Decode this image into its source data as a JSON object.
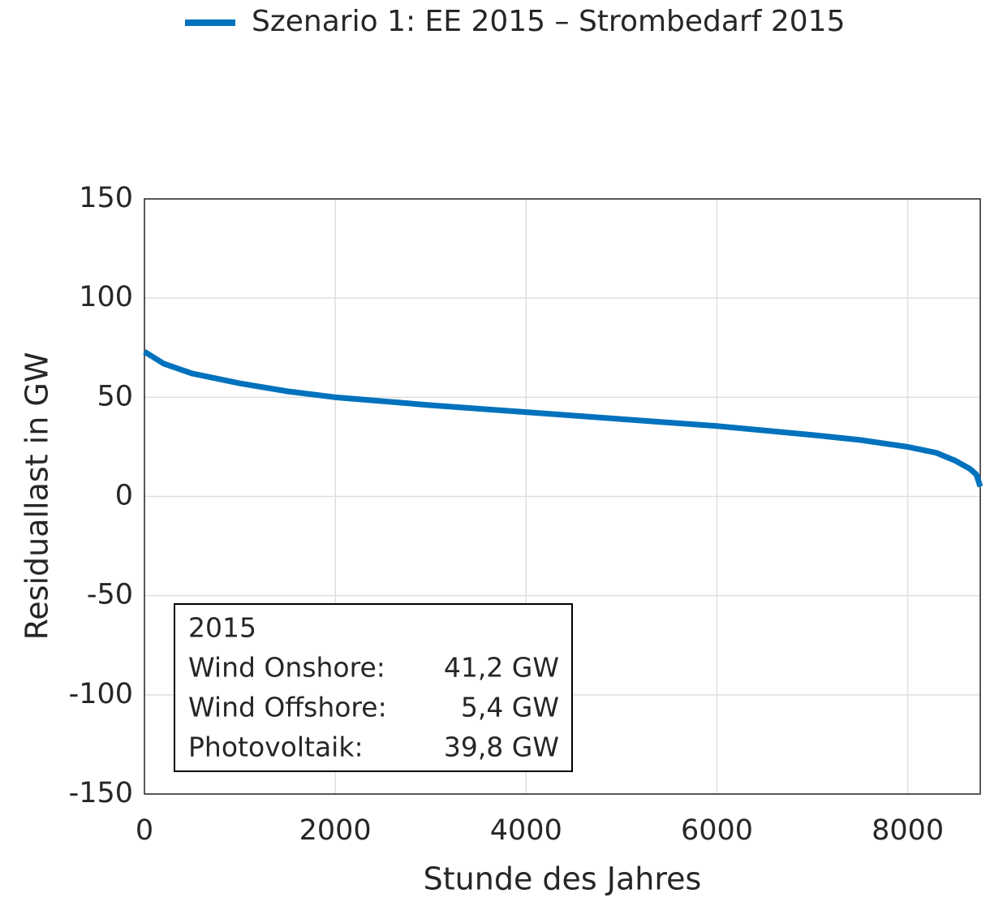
{
  "chart_data": {
    "type": "line",
    "x_label": "Stunde des Jahres",
    "y_label": "Residuallast in GW",
    "x": [
      0,
      100,
      200,
      500,
      1000,
      1500,
      2000,
      3000,
      4000,
      5000,
      6000,
      7000,
      7500,
      8000,
      8300,
      8500,
      8650,
      8720,
      8760
    ],
    "series": [
      {
        "name": "Szenario 1: EE 2015 – Strombedarf 2015",
        "color": "#0072bd",
        "values": [
          73,
          70,
          67,
          62,
          57,
          53,
          50,
          46,
          42.5,
          39,
          35.5,
          31,
          28.5,
          25,
          22,
          18,
          14,
          11,
          5
        ]
      }
    ],
    "xlim": [
      0,
      8760
    ],
    "xticks": [
      0,
      2000,
      4000,
      6000,
      8000
    ],
    "ylim": [
      -150,
      150
    ],
    "yticks": [
      -150,
      -100,
      -50,
      0,
      50,
      100,
      150
    ],
    "grid": true,
    "legend": "top",
    "annotation": {
      "title": "2015",
      "rows": [
        [
          "Wind Onshore:",
          "41,2 GW"
        ],
        [
          "Wind Offshore:",
          "5,4 GW"
        ],
        [
          "Photovoltaik:",
          "39,8 GW"
        ]
      ]
    }
  }
}
